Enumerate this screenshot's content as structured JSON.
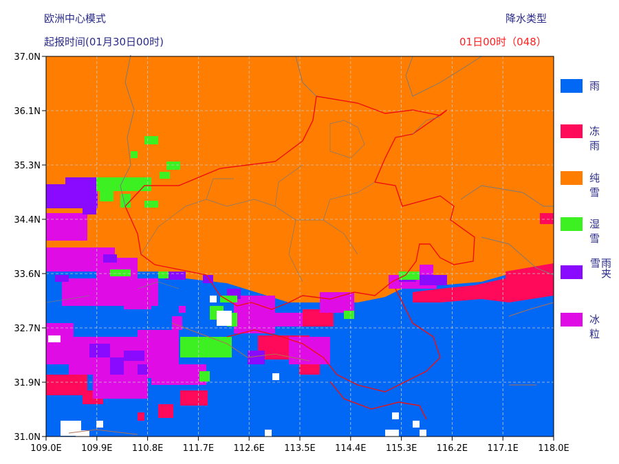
{
  "header": {
    "model": "欧洲中心模式",
    "issue_time": "起报时间(01月30日00时)",
    "product": "降水类型",
    "valid_time": "01日00时（048）"
  },
  "colors": {
    "rain": "#0068f4",
    "freezing_rain": "#ff0a5a",
    "snow": "#ff7d00",
    "wet_snow": "#3cf022",
    "sleet": "#8a0aff",
    "ice_pellets": "#e00ce6",
    "province_border": "#ee1010",
    "county_border": "#7a7a7a",
    "river": "#b07050",
    "grid": "#c8c8c8"
  },
  "legend": [
    {
      "key": "rain",
      "label": "雨",
      "color": "#0068f4"
    },
    {
      "key": "freezing_rain",
      "label": "冻雨",
      "color": "#ff0a5a"
    },
    {
      "key": "snow",
      "label": "纯雪",
      "color": "#ff7d00"
    },
    {
      "key": "wet_snow",
      "label": "湿雪",
      "color": "#3cf022"
    },
    {
      "key": "sleet",
      "label": "雨夹雪",
      "color": "#8a0aff"
    },
    {
      "key": "ice_pellets",
      "label": "冰粒",
      "color": "#e00ce6"
    }
  ],
  "axes": {
    "lat_labels": [
      "37.0N",
      "36.1N",
      "35.3N",
      "34.4N",
      "33.6N",
      "32.7N",
      "31.9N",
      "31.0N"
    ],
    "lon_labels": [
      "109.0E",
      "109.9E",
      "110.8E",
      "111.7E",
      "112.6E",
      "113.5E",
      "114.4E",
      "115.3E",
      "116.2E",
      "117.1E",
      "118.0E"
    ],
    "lat_range": [
      31.0,
      37.0
    ],
    "lon_range": [
      109.0,
      118.0
    ],
    "grid": true
  }
}
